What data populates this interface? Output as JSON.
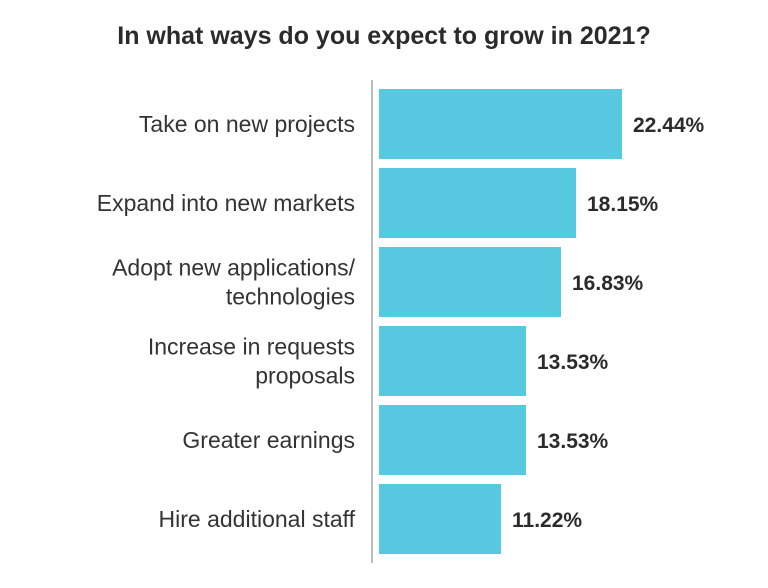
{
  "chart_data": {
    "type": "bar",
    "orientation": "horizontal",
    "title": "In what ways do you expect to grow in 2021?",
    "categories": [
      [
        "Take on new projects"
      ],
      [
        "Expand into new markets"
      ],
      [
        "Adopt new applications/",
        "technologies"
      ],
      [
        "Increase in requests",
        "proposals"
      ],
      [
        "Greater earnings"
      ],
      [
        "Hire additional staff"
      ]
    ],
    "values": [
      22.44,
      18.15,
      16.83,
      13.53,
      13.53,
      11.22
    ],
    "value_labels": [
      "22.44%",
      "18.15%",
      "16.83%",
      "13.53%",
      "13.53%",
      "11.22%"
    ],
    "xlim": [
      0,
      22.44
    ],
    "xlabel": "",
    "ylabel": "",
    "grid": false,
    "colors": {
      "bar": "#56c8e0",
      "axis": "#bdbdbd",
      "label": "#333333",
      "value": "#2b2b2b"
    }
  }
}
